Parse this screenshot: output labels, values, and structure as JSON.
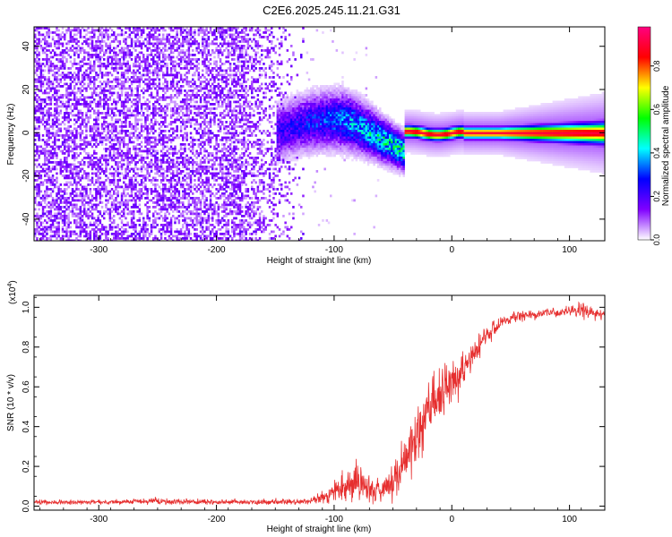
{
  "title": "C2E6.2025.245.11.21.G31",
  "chart_data": [
    {
      "type": "heatmap",
      "name": "spectrogram",
      "xlabel": "Height of straight line (km)",
      "ylabel": "Frequency (Hz)",
      "xlim": [
        -355,
        130
      ],
      "ylim": [
        -50,
        49
      ],
      "xticks": [
        -300,
        -200,
        -100,
        0,
        100
      ],
      "xticklabels": [
        "-300",
        "-200",
        "-100",
        "0",
        "100"
      ],
      "yticks": [
        -40,
        -20,
        0,
        20,
        40
      ],
      "yticklabels": [
        "-40",
        "-20",
        "0",
        "20",
        "40"
      ],
      "colorbar": {
        "label": "Normalized spectral amplitude",
        "range": [
          0,
          0.98
        ],
        "ticks": [
          0,
          0.2,
          0.4,
          0.6,
          0.8
        ],
        "ticklabels": [
          "0.0",
          "0.2",
          "0.4",
          "0.6",
          "0.8"
        ],
        "colormap": [
          "#ffffff",
          "#8000ff",
          "#0000ff",
          "#00ffff",
          "#00ff00",
          "#ffff00",
          "#ff0000",
          "#ff0080"
        ]
      },
      "features": {
        "noise_region_km": [
          -355,
          -125
        ],
        "noise_level": 0.15,
        "signal_onset_km": -150,
        "carrier_frequency_hz": 0,
        "carrier_peak_amplitude": 0.9
      }
    },
    {
      "type": "line",
      "name": "snr",
      "xlabel": "Height of straight line (km)",
      "ylabel": "SNR (10 * v/v)",
      "scale_label": "(x10",
      "scale_exponent": "4",
      "scale_suffix": ")",
      "xlim": [
        -355,
        130
      ],
      "ylim": [
        -0.02,
        1.06
      ],
      "xticks": [
        -300,
        -200,
        -100,
        0,
        100
      ],
      "xticklabels": [
        "-300",
        "-200",
        "-100",
        "0",
        "100"
      ],
      "yticks": [
        0,
        0.2,
        0.4,
        0.6,
        0.8,
        1.0
      ],
      "yticklabels": [
        "0.0",
        "0.2",
        "0.4",
        "0.6",
        "0.8",
        "1.0"
      ],
      "color": "#e62e2e",
      "series": [
        {
          "name": "SNR",
          "x": [
            -355,
            -300,
            -250,
            -200,
            -150,
            -120,
            -110,
            -100,
            -90,
            -80,
            -70,
            -60,
            -50,
            -40,
            -30,
            -20,
            -10,
            0,
            10,
            20,
            30,
            40,
            60,
            80,
            100,
            110,
            120,
            130
          ],
          "y": [
            0.02,
            0.02,
            0.025,
            0.02,
            0.02,
            0.025,
            0.04,
            0.07,
            0.1,
            0.13,
            0.09,
            0.07,
            0.12,
            0.22,
            0.35,
            0.48,
            0.56,
            0.62,
            0.68,
            0.78,
            0.86,
            0.92,
            0.96,
            0.97,
            0.98,
            0.985,
            0.97,
            0.96
          ],
          "noise": [
            0.007,
            0.007,
            0.01,
            0.008,
            0.008,
            0.01,
            0.02,
            0.03,
            0.05,
            0.06,
            0.05,
            0.05,
            0.07,
            0.09,
            0.1,
            0.1,
            0.08,
            0.06,
            0.05,
            0.04,
            0.03,
            0.02,
            0.015,
            0.015,
            0.015,
            0.025,
            0.02,
            0.02
          ]
        }
      ]
    }
  ]
}
